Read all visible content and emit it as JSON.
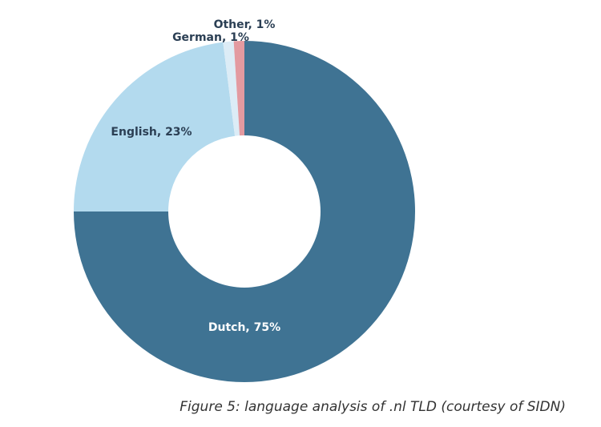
{
  "chart_data": {
    "type": "pie",
    "donut": true,
    "slices": [
      {
        "label": "Dutch",
        "value": 75,
        "text": "Dutch, 75%",
        "color": "#3f7393",
        "label_color": "#ffffff"
      },
      {
        "label": "English",
        "value": 23,
        "text": "English, 23%",
        "color": "#b3daee",
        "label_color": "#2b3f54"
      },
      {
        "label": "German",
        "value": 1,
        "text": "German, 1%",
        "color": "#dcecf6",
        "label_color": "#2b3f54"
      },
      {
        "label": "Other",
        "value": 1,
        "text": "Other, 1%",
        "color": "#e39aa0",
        "label_color": "#2b3f54"
      }
    ],
    "start": "12 o'clock",
    "direction": "clockwise",
    "legend": "none"
  },
  "caption": "Figure 5: language analysis of .nl TLD (courtesy of SIDN)"
}
